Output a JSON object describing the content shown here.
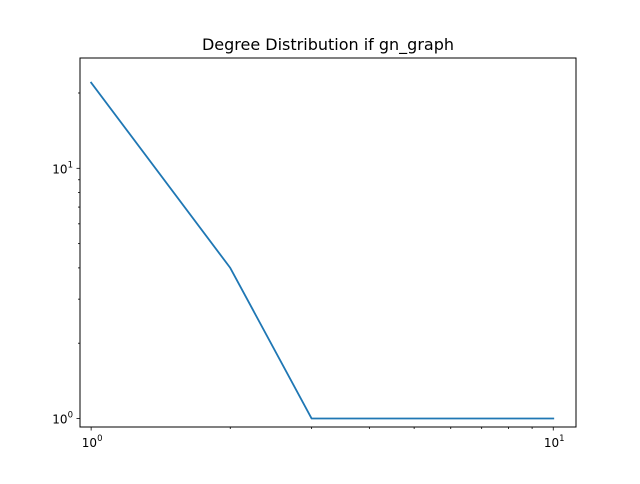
{
  "chart_data": {
    "type": "line",
    "title": "Degree Distribution if gn_graph",
    "xlabel": "",
    "ylabel": "",
    "xscale": "log",
    "yscale": "log",
    "xlim": [
      0.946,
      11.2
    ],
    "ylim": [
      0.925,
      27.6
    ],
    "x_ticks": [
      {
        "value": 1,
        "base": "10",
        "exp": "0"
      },
      {
        "value": 10,
        "base": "10",
        "exp": "1"
      }
    ],
    "y_ticks": [
      {
        "value": 1,
        "base": "10",
        "exp": "0"
      },
      {
        "value": 10,
        "base": "10",
        "exp": "1"
      }
    ],
    "grid": false,
    "legend": "none",
    "series": [
      {
        "color": "#1f77b4",
        "x": [
          1,
          2,
          3,
          4,
          5,
          6,
          7,
          8,
          9,
          10
        ],
        "y": [
          22,
          4,
          1,
          1,
          1,
          1,
          1,
          1,
          1,
          1
        ]
      }
    ]
  }
}
